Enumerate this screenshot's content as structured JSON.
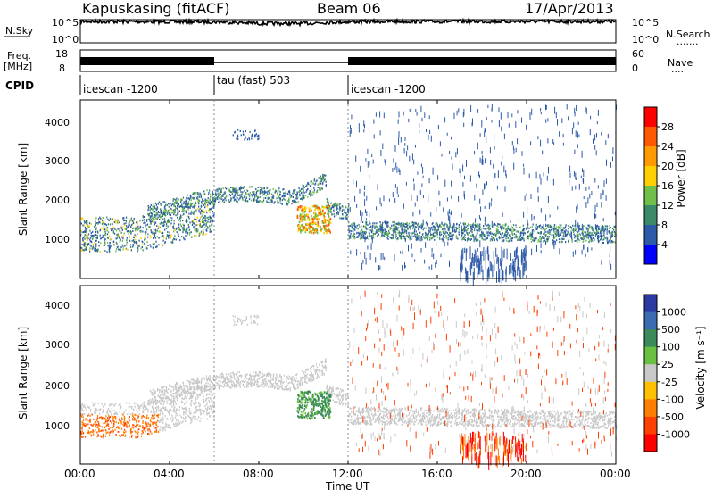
{
  "header": {
    "station": "Kapuskasing (fitACF)",
    "beam": "Beam 06",
    "date": "17/Apr/2013"
  },
  "top_panels": {
    "nsky_label": "N.Sky",
    "nsky_ticks": [
      "10^5",
      "10^0"
    ],
    "nsearch_label": "N.Search",
    "nsearch_ticks": [
      "10^5",
      "10^0"
    ],
    "freq_label_1": "Freq.",
    "freq_label_2": "[MHz]",
    "freq_ticks": [
      "18",
      "8"
    ],
    "nave_label": "Nave",
    "nave_ticks": [
      "60",
      "0"
    ],
    "cpid_label": "CPID",
    "modes": [
      {
        "name": "icescan -1200",
        "start_hr": 0,
        "end_hr": 6
      },
      {
        "name": "tau (fast) 503",
        "start_hr": 6,
        "end_hr": 12
      },
      {
        "name": "icescan -1200",
        "start_hr": 12,
        "end_hr": 24
      }
    ]
  },
  "power_panel": {
    "ylabel": "Slant Range [km]",
    "yticks": [
      "4000",
      "3000",
      "2000",
      "1000"
    ],
    "cbar_label": "Power [dB]",
    "cbar_ticks": [
      "28",
      "24",
      "20",
      "16",
      "12",
      "8",
      "4"
    ],
    "cbar_colors": [
      "#ff0000",
      "#ff5a00",
      "#ff9a00",
      "#ffd000",
      "#6fbf4a",
      "#3a8a6a",
      "#2d5aa8",
      "#0000ff"
    ]
  },
  "velocity_panel": {
    "ylabel": "Slant Range [km]",
    "yticks": [
      "4000",
      "3000",
      "2000",
      "1000"
    ],
    "cbar_label": "Velocity [m s⁻¹]",
    "cbar_ticks": [
      "1000",
      "500",
      "100",
      "25",
      "-25",
      "-100",
      "-500",
      "-1000"
    ],
    "cbar_colors": [
      "#2a3aa0",
      "#3a6ab0",
      "#3a8a5a",
      "#6ac040",
      "#c8c8c8",
      "#ffc000",
      "#ff8000",
      "#ff4000",
      "#ff0000"
    ]
  },
  "x_axis": {
    "label": "Time UT",
    "ticks": [
      "00:00",
      "04:00",
      "08:00",
      "12:00",
      "16:00",
      "20:00",
      "00:00"
    ]
  },
  "chart_data": [
    {
      "type": "line",
      "title": "N.Sky / N.Search",
      "x": [
        0,
        6,
        8,
        10,
        12,
        14,
        20,
        24
      ],
      "series": [
        {
          "name": "N.Sky",
          "values": [
            100000,
            80000,
            30000,
            30000,
            80000,
            100000,
            100000,
            100000
          ]
        }
      ],
      "xlim": [
        0,
        24
      ]
    },
    {
      "type": "line",
      "title": "Freq. / Nave",
      "x": [
        0,
        6,
        6,
        12,
        12,
        24
      ],
      "series": [
        {
          "name": "Freq. [MHz]",
          "values": [
            11.5,
            11.5,
            10.5,
            10.5,
            11.5,
            11.5
          ]
        }
      ],
      "xlim": [
        0,
        24
      ]
    },
    {
      "type": "heatmap",
      "title": "Power [dB]",
      "xlabel": "Time UT",
      "ylabel": "Slant Range [km]",
      "xlim": [
        0,
        24
      ],
      "ylim": [
        0,
        4600
      ],
      "colorbar": [
        4,
        8,
        12,
        16,
        20,
        24,
        28
      ]
    },
    {
      "type": "heatmap",
      "title": "Velocity [m s⁻¹]",
      "xlabel": "Time UT",
      "ylabel": "Slant Range [km]",
      "xlim": [
        0,
        24
      ],
      "ylim": [
        0,
        4600
      ],
      "colorbar": [
        -1000,
        -500,
        -100,
        -25,
        25,
        100,
        500,
        1000
      ]
    }
  ]
}
